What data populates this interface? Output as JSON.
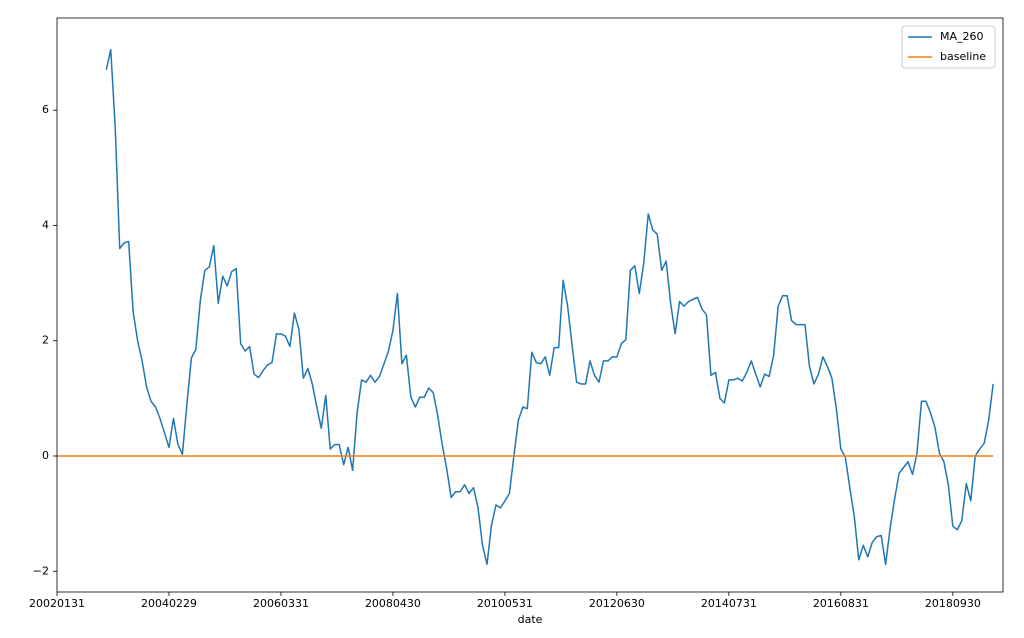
{
  "chart_data": {
    "type": "line",
    "xlabel": "date",
    "categories": [
      "20020131",
      null,
      null,
      null,
      null,
      null,
      null,
      null,
      null,
      null,
      null,
      null,
      null,
      null,
      null,
      null,
      null,
      null,
      null,
      null,
      null,
      null,
      null,
      null,
      null,
      "20040229",
      null,
      null,
      null,
      null,
      null,
      null,
      null,
      null,
      null,
      null,
      null,
      null,
      null,
      null,
      null,
      null,
      null,
      null,
      null,
      null,
      null,
      null,
      null,
      null,
      "20060331",
      null,
      null,
      null,
      null,
      null,
      null,
      null,
      null,
      null,
      null,
      null,
      null,
      null,
      null,
      null,
      null,
      null,
      null,
      null,
      null,
      null,
      null,
      null,
      null,
      "20080430",
      null,
      null,
      null,
      null,
      null,
      null,
      null,
      null,
      null,
      null,
      null,
      null,
      null,
      null,
      null,
      null,
      null,
      null,
      null,
      null,
      null,
      null,
      null,
      null,
      "20100531",
      null,
      null,
      null,
      null,
      null,
      null,
      null,
      null,
      null,
      null,
      null,
      null,
      null,
      null,
      null,
      null,
      null,
      null,
      null,
      null,
      null,
      null,
      null,
      null,
      "20120630",
      null,
      null,
      null,
      null,
      null,
      null,
      null,
      null,
      null,
      null,
      null,
      null,
      null,
      null,
      null,
      null,
      null,
      null,
      null,
      null,
      null,
      null,
      null,
      null,
      "20140731",
      null,
      null,
      null,
      null,
      null,
      null,
      null,
      null,
      null,
      null,
      null,
      null,
      null,
      null,
      null,
      null,
      null,
      null,
      null,
      null,
      null,
      null,
      null,
      null,
      "20160831",
      null,
      null,
      null,
      null,
      null,
      null,
      null,
      null,
      null,
      null,
      null,
      null,
      null,
      null,
      null,
      null,
      null,
      null,
      null,
      null,
      null,
      null,
      null,
      null,
      "20180930",
      null,
      null,
      null,
      null,
      null,
      null,
      null,
      null,
      null
    ],
    "series": [
      {
        "name": "MA_260",
        "color": "#1f77b4",
        "values": [
          null,
          null,
          null,
          null,
          null,
          null,
          null,
          null,
          null,
          null,
          null,
          6.7,
          7.05,
          5.7,
          3.6,
          3.7,
          3.72,
          2.5,
          2.0,
          1.65,
          1.2,
          0.95,
          0.85,
          0.65,
          0.4,
          0.15,
          0.65,
          0.2,
          0.03,
          0.9,
          1.7,
          1.85,
          2.7,
          3.22,
          3.28,
          3.65,
          2.65,
          3.12,
          2.95,
          3.2,
          3.25,
          1.95,
          1.82,
          1.9,
          1.42,
          1.36,
          1.48,
          1.58,
          1.62,
          2.12,
          2.12,
          2.08,
          1.9,
          2.48,
          2.2,
          1.35,
          1.52,
          1.25,
          0.85,
          0.48,
          1.05,
          0.12,
          0.2,
          0.2,
          -0.15,
          0.15,
          -0.25,
          0.75,
          1.32,
          1.28,
          1.4,
          1.28,
          1.38,
          1.6,
          1.82,
          2.18,
          2.82,
          1.6,
          1.75,
          1.02,
          0.85,
          1.02,
          1.02,
          1.18,
          1.1,
          0.7,
          0.2,
          -0.22,
          -0.72,
          -0.62,
          -0.62,
          -0.5,
          -0.65,
          -0.55,
          -0.9,
          -1.55,
          -1.88,
          -1.2,
          -0.85,
          -0.9,
          -0.78,
          -0.65,
          0.0,
          0.62,
          0.85,
          0.82,
          1.8,
          1.62,
          1.6,
          1.72,
          1.4,
          1.88,
          1.88,
          3.05,
          2.6,
          1.92,
          1.28,
          1.25,
          1.25,
          1.65,
          1.4,
          1.28,
          1.65,
          1.65,
          1.72,
          1.72,
          1.95,
          2.02,
          3.22,
          3.3,
          2.82,
          3.35,
          4.2,
          3.92,
          3.85,
          3.22,
          3.38,
          2.65,
          2.12,
          2.68,
          2.6,
          2.68,
          2.72,
          2.75,
          2.55,
          2.45,
          1.4,
          1.45,
          1.0,
          0.92,
          1.32,
          1.32,
          1.35,
          1.3,
          1.45,
          1.65,
          1.42,
          1.2,
          1.42,
          1.38,
          1.75,
          2.6,
          2.78,
          2.78,
          2.35,
          2.28,
          2.28,
          2.28,
          1.55,
          1.25,
          1.42,
          1.72,
          1.55,
          1.35,
          0.82,
          0.12,
          -0.02,
          -0.55,
          -1.05,
          -1.8,
          -1.55,
          -1.75,
          -1.5,
          -1.4,
          -1.38,
          -1.88,
          -1.25,
          -0.75,
          -0.3,
          -0.2,
          -0.1,
          -0.32,
          0.05,
          0.95,
          0.95,
          0.75,
          0.5,
          0.05,
          -0.1,
          -0.5,
          -1.22,
          -1.28,
          -1.12,
          -0.48,
          -0.78,
          0.0,
          0.12,
          0.22,
          0.62,
          1.25
        ]
      },
      {
        "name": "baseline",
        "color": "#ff7f0e",
        "values": [
          0,
          0,
          0,
          0,
          0,
          0,
          0,
          0,
          0,
          0,
          0,
          0,
          0,
          0,
          0,
          0,
          0,
          0,
          0,
          0,
          0,
          0,
          0,
          0,
          0,
          0,
          0,
          0,
          0,
          0,
          0,
          0,
          0,
          0,
          0,
          0,
          0,
          0,
          0,
          0,
          0,
          0,
          0,
          0,
          0,
          0,
          0,
          0,
          0,
          0,
          0,
          0,
          0,
          0,
          0,
          0,
          0,
          0,
          0,
          0,
          0,
          0,
          0,
          0,
          0,
          0,
          0,
          0,
          0,
          0,
          0,
          0,
          0,
          0,
          0,
          0,
          0,
          0,
          0,
          0,
          0,
          0,
          0,
          0,
          0,
          0,
          0,
          0,
          0,
          0,
          0,
          0,
          0,
          0,
          0,
          0,
          0,
          0,
          0,
          0,
          0,
          0,
          0,
          0,
          0,
          0,
          0,
          0,
          0,
          0,
          0,
          0,
          0,
          0,
          0,
          0,
          0,
          0,
          0,
          0,
          0,
          0,
          0,
          0,
          0,
          0,
          0,
          0,
          0,
          0,
          0,
          0,
          0,
          0,
          0,
          0,
          0,
          0,
          0,
          0,
          0,
          0,
          0,
          0,
          0,
          0,
          0,
          0,
          0,
          0,
          0,
          0,
          0,
          0,
          0,
          0,
          0,
          0,
          0,
          0,
          0,
          0,
          0,
          0,
          0,
          0,
          0,
          0,
          0,
          0,
          0,
          0,
          0,
          0,
          0,
          0,
          0,
          0,
          0,
          0,
          0,
          0,
          0,
          0,
          0,
          0,
          0,
          0,
          0,
          0,
          0,
          0,
          0,
          0,
          0,
          0,
          0,
          0,
          0,
          0,
          0,
          0,
          0,
          0,
          0,
          0,
          0,
          0,
          0,
          0
        ]
      }
    ],
    "xlim": [
      0,
      211.2
    ],
    "ylim": [
      -2.36,
      7.6
    ],
    "yticks": [
      {
        "value": -2,
        "label": "−2"
      },
      0,
      2,
      4,
      6
    ],
    "legend": "upper right"
  }
}
